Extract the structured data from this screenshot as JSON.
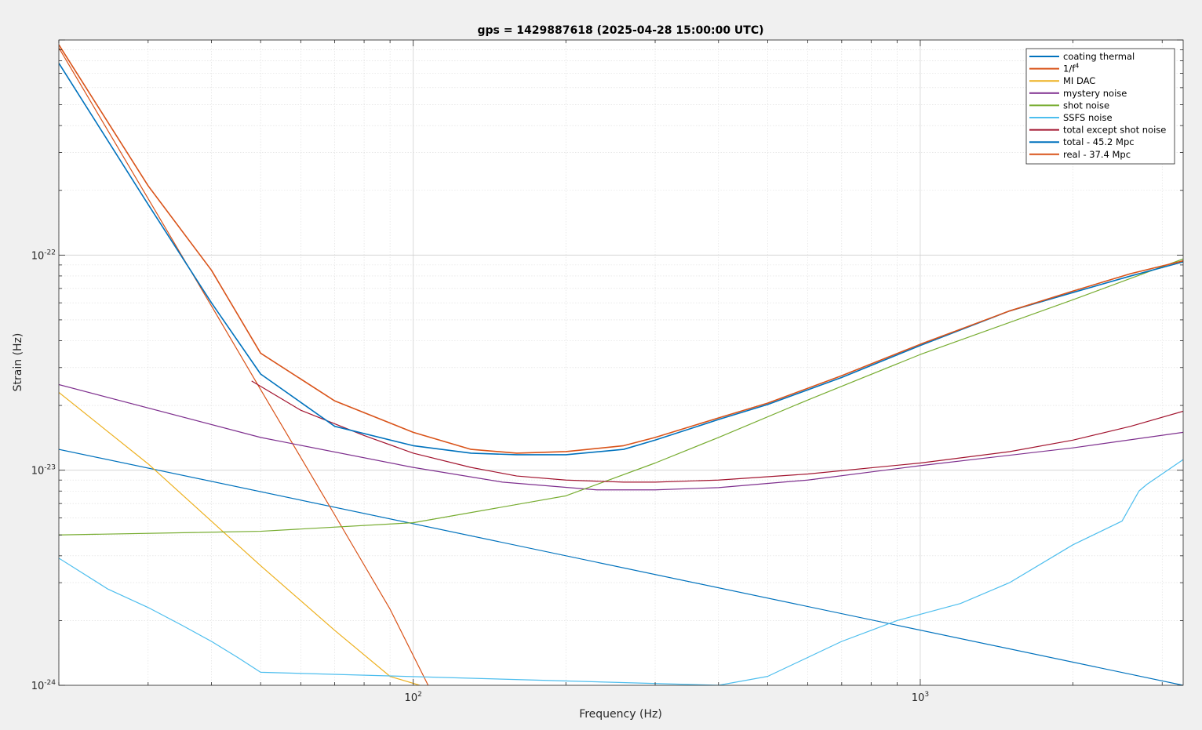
{
  "chart_data": {
    "type": "line",
    "title": "gps = 1429887618 (2025-04-28 15:00:00 UTC)",
    "xlabel": "Frequency (Hz)",
    "ylabel": "Strain (Hz)",
    "xscale": "log",
    "yscale": "log",
    "xlim": [
      20,
      3300
    ],
    "ylim": [
      1e-24,
      1e-21
    ],
    "grid": true,
    "legend_position": "top-right",
    "x_tick_labels": [
      {
        "value": 100,
        "base": "10",
        "exp": "2"
      },
      {
        "value": 1000,
        "base": "10",
        "exp": "3"
      }
    ],
    "y_tick_labels": [
      {
        "value": 1e-24,
        "base": "10",
        "exp": "-24"
      },
      {
        "value": 1e-23,
        "base": "10",
        "exp": "-23"
      },
      {
        "value": 1e-22,
        "base": "10",
        "exp": "-22"
      }
    ],
    "legend_entries": [
      {
        "label": "coating thermal",
        "sup": "",
        "color": "#0072bd"
      },
      {
        "label": "1/f",
        "sup": "4",
        "color": "#d95319"
      },
      {
        "label": "MI DAC",
        "sup": "",
        "color": "#edb120"
      },
      {
        "label": "mystery noise",
        "sup": "",
        "color": "#7e2f8e"
      },
      {
        "label": "shot noise",
        "sup": "",
        "color": "#77ac30"
      },
      {
        "label": "SSFS noise",
        "sup": "",
        "color": "#4dbeee"
      },
      {
        "label": "total except shot noise",
        "sup": "",
        "color": "#a2142f"
      },
      {
        "label": "total - 45.2 Mpc",
        "sup": "",
        "color": "#0072bd"
      },
      {
        "label": "real - 37.4 Mpc",
        "sup": "",
        "color": "#d95319"
      }
    ],
    "series": [
      {
        "name": "coating thermal",
        "color": "#0072bd",
        "x": [
          20,
          3300
        ],
        "y": [
          1.25e-23,
          1e-24
        ]
      },
      {
        "name": "1/f4",
        "color": "#d95319",
        "x": [
          20,
          30,
          40,
          50,
          70,
          90,
          107
        ],
        "y": [
          9.2e-22,
          1.83e-22,
          5.8e-23,
          2.37e-23,
          6.2e-24,
          2.26e-24,
          1e-24
        ]
      },
      {
        "name": "MI DAC",
        "color": "#edb120",
        "x": [
          20,
          30,
          50,
          70,
          90,
          103
        ],
        "y": [
          2.3e-23,
          1.07e-23,
          3.6e-24,
          1.8e-24,
          1.1e-24,
          1e-24
        ]
      },
      {
        "name": "mystery noise",
        "color": "#7e2f8e",
        "x": [
          20,
          50,
          100,
          150,
          230,
          300,
          400,
          600,
          1000,
          2000,
          3300
        ],
        "y": [
          2.5e-23,
          1.42e-23,
          1.03e-23,
          8.8e-24,
          8.1e-24,
          8.1e-24,
          8.3e-24,
          9e-24,
          1.05e-23,
          1.27e-23,
          1.5e-23
        ]
      },
      {
        "name": "shot noise",
        "color": "#77ac30",
        "x": [
          20,
          50,
          100,
          200,
          300,
          400,
          600,
          1000,
          2000,
          3300
        ],
        "y": [
          5e-24,
          5.2e-24,
          5.7e-24,
          7.6e-24,
          1.08e-23,
          1.42e-23,
          2.12e-23,
          3.45e-23,
          6.2e-23,
          9.6e-23
        ]
      },
      {
        "name": "SSFS noise",
        "color": "#4dbeee",
        "x": [
          20,
          25,
          30,
          35,
          40,
          45,
          50,
          400,
          500,
          700,
          800,
          900,
          1200,
          1500,
          2000,
          2500,
          2700,
          2800,
          3300
        ],
        "y": [
          3.9e-24,
          2.8e-24,
          2.3e-24,
          1.9e-24,
          1.6e-24,
          1.35e-24,
          1.15e-24,
          1e-24,
          1.1e-24,
          1.6e-24,
          1.8e-24,
          2e-24,
          2.4e-24,
          3e-24,
          4.5e-24,
          5.8e-24,
          8e-24,
          8.6e-24,
          1.12e-23
        ]
      },
      {
        "name": "total except shot noise",
        "color": "#a2142f",
        "x": [
          48,
          60,
          80,
          100,
          130,
          160,
          200,
          260,
          300,
          400,
          600,
          1000,
          1500,
          2000,
          2600,
          3300
        ],
        "y": [
          2.6e-23,
          1.9e-23,
          1.45e-23,
          1.2e-23,
          1.03e-23,
          9.4e-24,
          9e-24,
          8.8e-24,
          8.8e-24,
          9e-24,
          9.6e-24,
          1.08e-23,
          1.22e-23,
          1.38e-23,
          1.6e-23,
          1.88e-23
        ]
      },
      {
        "name": "total - 45.2 Mpc",
        "color": "#0072bd",
        "x": [
          20,
          30,
          40,
          50,
          70,
          100,
          130,
          160,
          200,
          260,
          300,
          400,
          500,
          700,
          1000,
          1500,
          2000,
          2600,
          3300
        ],
        "y": [
          7.8e-22,
          1.72e-22,
          6e-23,
          2.8e-23,
          1.6e-23,
          1.3e-23,
          1.2e-23,
          1.18e-23,
          1.18e-23,
          1.25e-23,
          1.38e-23,
          1.72e-23,
          2.02e-23,
          2.7e-23,
          3.8e-23,
          5.5e-23,
          6.7e-23,
          8e-23,
          9.3e-23
        ]
      },
      {
        "name": "real - 37.4 Mpc",
        "color": "#d95319",
        "x": [
          20,
          30,
          40,
          50,
          70,
          100,
          130,
          160,
          200,
          260,
          300,
          400,
          500,
          700,
          1000,
          1500,
          2000,
          2600,
          3300
        ],
        "y": [
          9.5e-22,
          2.1e-22,
          8.5e-23,
          3.5e-23,
          2.1e-23,
          1.5e-23,
          1.25e-23,
          1.2e-23,
          1.22e-23,
          1.3e-23,
          1.42e-23,
          1.75e-23,
          2.05e-23,
          2.75e-23,
          3.85e-23,
          5.5e-23,
          6.8e-23,
          8.2e-23,
          9.4e-23
        ]
      }
    ]
  }
}
